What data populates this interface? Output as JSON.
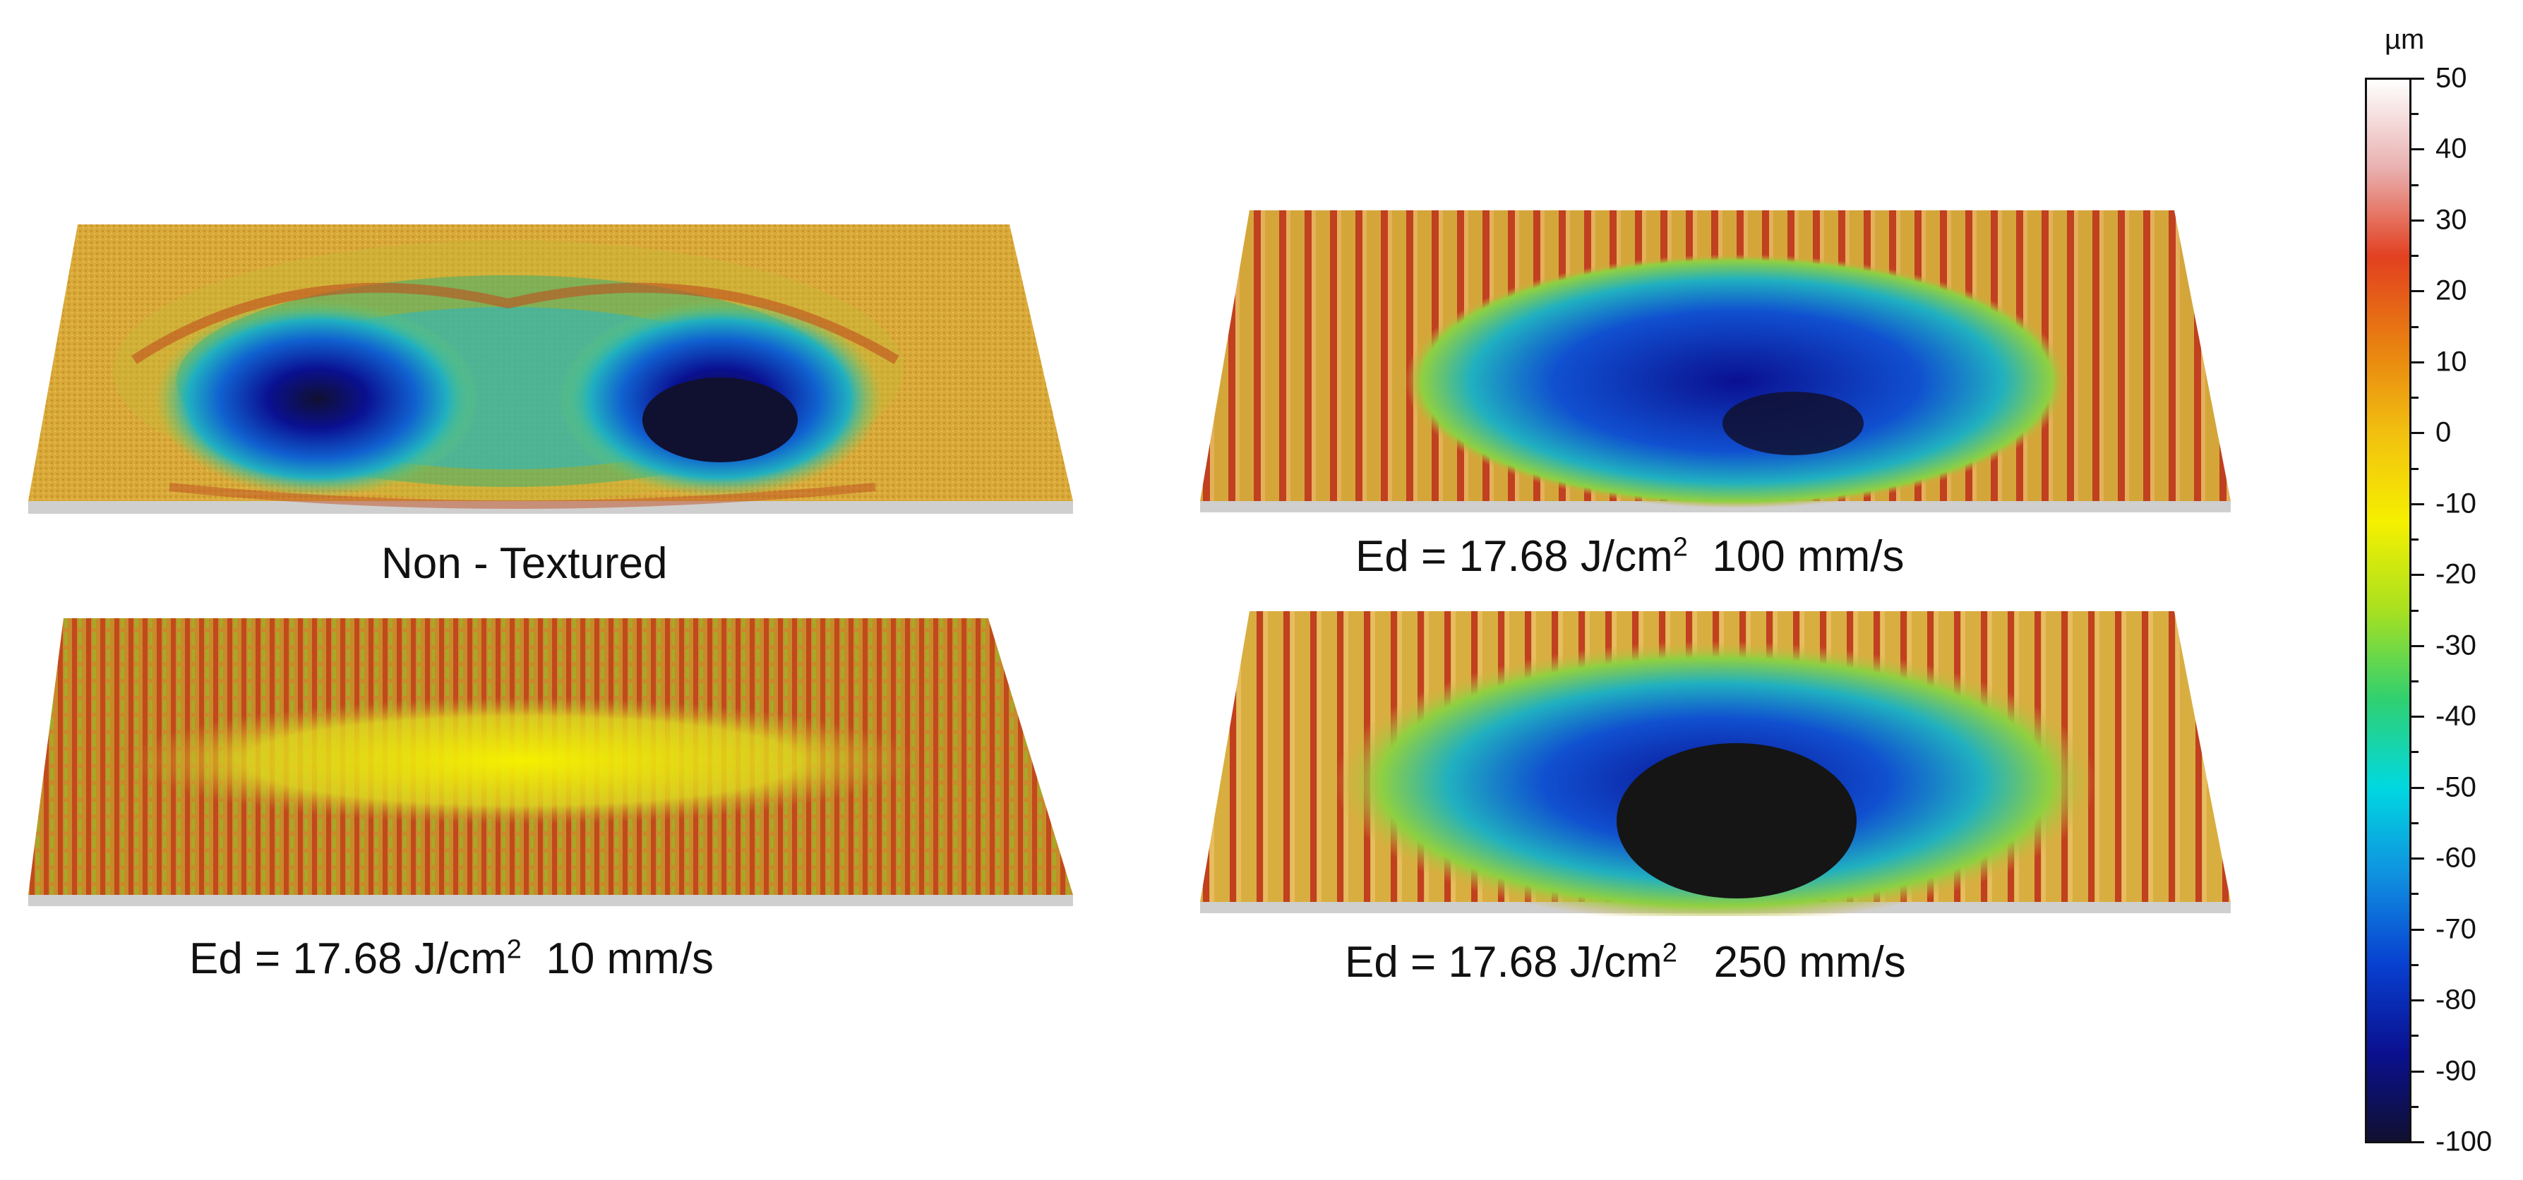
{
  "panels": [
    {
      "id": "non-textured",
      "caption": {
        "text": "Non - Textured"
      }
    },
    {
      "id": "100mms",
      "caption": {
        "pre": "Ed = 17.68 J/cm",
        "sup": "2",
        "post": "  100 mm/s"
      }
    },
    {
      "id": "10mms",
      "caption": {
        "pre": "Ed = 17.68 J/cm",
        "sup": "2",
        "post": "  10 mm/s"
      }
    },
    {
      "id": "250mms",
      "caption": {
        "pre": "Ed = 17.68 J/cm",
        "sup": "2",
        "post": "   250 mm/s"
      }
    }
  ],
  "colorbar": {
    "unit": "µm",
    "ticks": [
      "50",
      "40",
      "30",
      "20",
      "10",
      "0",
      "-10",
      "-20",
      "-30",
      "-40",
      "-50",
      "-60",
      "-70",
      "-80",
      "-90",
      "-100"
    ],
    "min": -100,
    "max": 50,
    "colors": [
      "#ffffff",
      "#e9b0b0",
      "#e24020",
      "#e88010",
      "#f2c010",
      "#f5f000",
      "#a8e020",
      "#30d070",
      "#00d8e0",
      "#1090e0",
      "#0840d0",
      "#0a1090",
      "#101030"
    ]
  }
}
